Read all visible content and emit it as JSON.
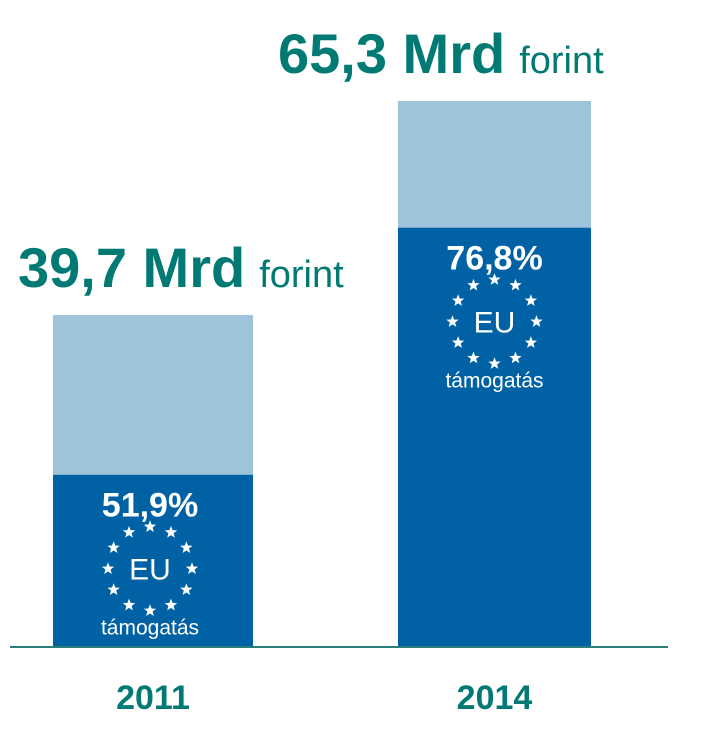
{
  "colors": {
    "eu_share": "#0062a5",
    "remainder": "#9ec4dc",
    "total_text": "#007a73",
    "axis": "#2a7f7b",
    "label_text": "#ffffff"
  },
  "chart_data": {
    "type": "bar",
    "stacked": true,
    "categories": [
      "2011",
      "2014"
    ],
    "totals": [
      39.7,
      65.3
    ],
    "eu_share_percent": [
      51.9,
      76.8
    ],
    "total_labels": [
      {
        "value": "39,7 Mrd",
        "unit": "forint"
      },
      {
        "value": "65,3 Mrd",
        "unit": "forint"
      }
    ],
    "share_labels": [
      "51,9%",
      "76,8%"
    ],
    "emblem_text": "EU",
    "emblem_icon": "eu-stars-icon",
    "support_label": "támogatás",
    "ylim": [
      0,
      65.3
    ],
    "grid": false,
    "legend": "none"
  }
}
